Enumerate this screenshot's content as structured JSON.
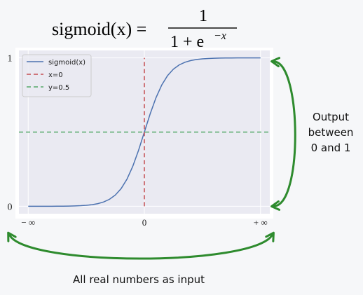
{
  "chart_data": {
    "type": "line",
    "title": {
      "lhs": "sigmoid(x) =",
      "numerator": "1",
      "denominator": "1 + e",
      "exponent": "−x"
    },
    "xlim": [
      -10.8,
      10.8
    ],
    "ylim": [
      -0.05,
      1.05
    ],
    "xticks": [
      {
        "value": -10,
        "label": "− ∞"
      },
      0,
      {
        "value": 10,
        "label": "+ ∞"
      }
    ],
    "yticks": [
      0,
      1
    ],
    "grid": true,
    "legend": "upper left",
    "series": [
      {
        "name": "sigmoid(x)",
        "color": "#4c72b0",
        "dash": "solid",
        "x": [
          -10,
          -9.5,
          -9,
          -8.5,
          -8,
          -7.5,
          -7,
          -6.5,
          -6,
          -5.5,
          -5,
          -4.5,
          -4,
          -3.5,
          -3,
          -2.5,
          -2,
          -1.5,
          -1,
          -0.5,
          0,
          0.5,
          1,
          1.5,
          2,
          2.5,
          3,
          3.5,
          4,
          4.5,
          5,
          5.5,
          6,
          6.5,
          7,
          7.5,
          8,
          8.5,
          9,
          9.5,
          10
        ],
        "values": [
          0.0,
          0.0001,
          0.0001,
          0.0002,
          0.0003,
          0.0006,
          0.0009,
          0.0015,
          0.0025,
          0.0041,
          0.0067,
          0.011,
          0.018,
          0.0293,
          0.0474,
          0.0759,
          0.1192,
          0.1824,
          0.2689,
          0.3775,
          0.5,
          0.6225,
          0.7311,
          0.8176,
          0.8808,
          0.9241,
          0.9526,
          0.9707,
          0.982,
          0.989,
          0.9933,
          0.9959,
          0.9975,
          0.9985,
          0.9991,
          0.9994,
          0.9997,
          0.9998,
          0.9999,
          0.9999,
          1.0
        ]
      },
      {
        "name": "x=0",
        "color": "#c44e52",
        "dash": "dashed",
        "x": [
          0,
          0
        ],
        "values": [
          0,
          1
        ]
      },
      {
        "name": "y=0.5",
        "color": "#55a868",
        "dash": "dashed",
        "x": [
          -10.8,
          10.8
        ],
        "values": [
          0.5,
          0.5
        ]
      }
    ]
  },
  "annotations": {
    "output": [
      "Output",
      "between",
      "0 and 1"
    ],
    "input": "All real numbers as input"
  }
}
